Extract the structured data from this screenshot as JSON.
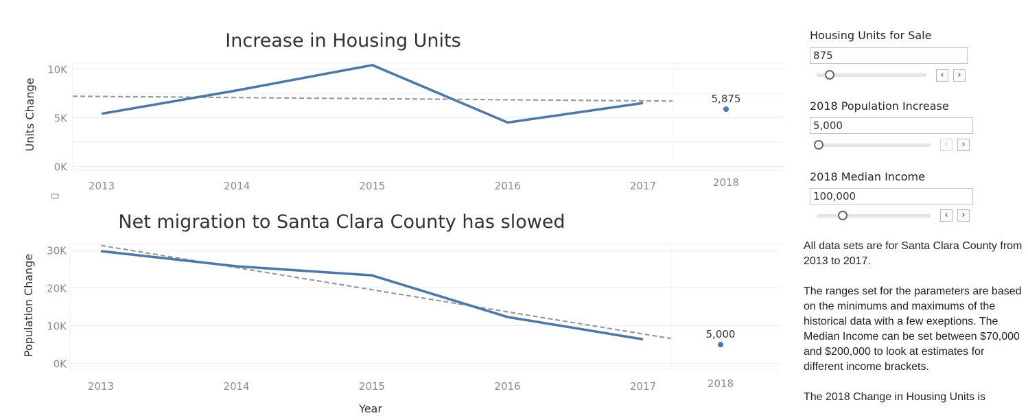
{
  "chart_data": [
    {
      "type": "line",
      "title": "Increase in Housing Units",
      "xlabel": "",
      "ylabel": "Units Change",
      "categories": [
        "2013",
        "2014",
        "2015",
        "2016",
        "2017"
      ],
      "series": [
        {
          "values": [
            5400,
            7800,
            10400,
            4500,
            6500
          ],
          "color": "#4e79a7"
        }
      ],
      "trendline": {
        "start": 7200,
        "end": 6700,
        "style": "dashed",
        "color": "#999999"
      },
      "forecast": {
        "category": "2018",
        "value": 5875,
        "label": "5,875"
      },
      "y_ticks": [
        {
          "label": "10K",
          "value": 10000
        },
        {
          "label": "5K",
          "value": 5000
        },
        {
          "label": "0K",
          "value": 0
        }
      ],
      "ylim": [
        -400,
        10600
      ],
      "grid": true
    },
    {
      "type": "line",
      "title": "Net migration to Santa Clara County has slowed",
      "xlabel": "Year",
      "ylabel": "Population Change",
      "categories": [
        "2013",
        "2014",
        "2015",
        "2016",
        "2017"
      ],
      "series": [
        {
          "values": [
            29700,
            25700,
            23300,
            12300,
            6400
          ],
          "color": "#4e79a7"
        }
      ],
      "trendline": {
        "start": 31200,
        "end": 6600,
        "style": "dashed",
        "color": "#999999"
      },
      "forecast": {
        "category": "2018",
        "value": 5000,
        "label": "5,000"
      },
      "y_ticks": [
        {
          "label": "30K",
          "value": 30000
        },
        {
          "label": "20K",
          "value": 20000
        },
        {
          "label": "10K",
          "value": 10000
        },
        {
          "label": "0K",
          "value": 0
        }
      ],
      "ylim": [
        -1500,
        31500
      ],
      "grid": true
    }
  ],
  "parameters": {
    "housing": {
      "title": "Housing Units for Sale",
      "value": "875",
      "slider_fraction": 0.12,
      "prev_enabled": true,
      "next_enabled": true
    },
    "population": {
      "title": "2018 Population Increase",
      "value": "5,000",
      "slider_fraction": 0.0,
      "prev_enabled": false,
      "next_enabled": true
    },
    "income": {
      "title": "2018 Median Income",
      "value": "100,000",
      "slider_fraction": 0.23,
      "prev_enabled": true,
      "next_enabled": true
    }
  },
  "notes": {
    "p1": "All data sets are for Santa Clara County from 2013 to 2017.",
    "p2": "The ranges set for the parameters are based on the minimums and maximums of the historical data with a few exeptions. The Median Income can be set between $70,000 and $200,000 to look at estimates for different income brackets.",
    "p3": "The 2018 Change in Housing Units is"
  },
  "colors": {
    "line": "#4e79a7",
    "trend": "#999999",
    "grid": "#ececec"
  }
}
